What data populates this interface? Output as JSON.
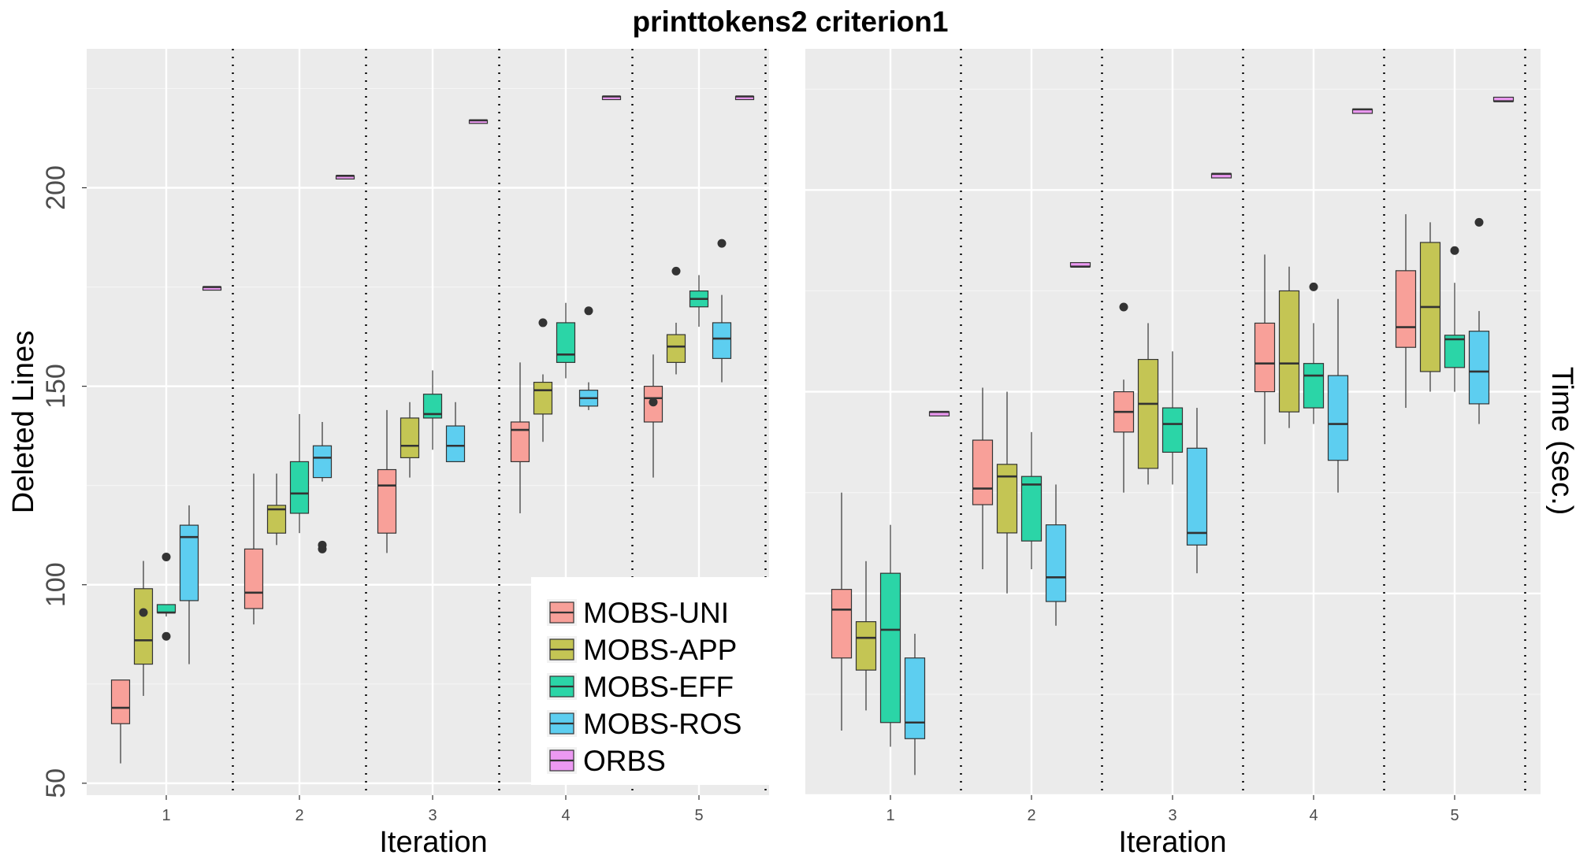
{
  "figure": {
    "title": "printtokens2 criterion1"
  },
  "chart_data": [
    {
      "type": "box",
      "title": "",
      "xlabel": "Iteration",
      "ylabel": "Deleted Lines",
      "categories": [
        "1",
        "2",
        "3",
        "4",
        "5"
      ],
      "ylim": [
        47,
        235
      ],
      "yticks": [
        50,
        100,
        150,
        200
      ],
      "grid": true,
      "legend_position": "bottom-right",
      "series": [
        {
          "name": "MOBS-UNI",
          "color": "#F8A099",
          "boxes": [
            {
              "min": 55,
              "q1": 65,
              "median": 69,
              "q3": 76,
              "max": 76,
              "outliers": []
            },
            {
              "min": 90,
              "q1": 94,
              "median": 98,
              "q3": 109,
              "max": 128,
              "outliers": []
            },
            {
              "min": 108,
              "q1": 113,
              "median": 125,
              "q3": 129,
              "max": 144,
              "outliers": []
            },
            {
              "min": 118,
              "q1": 131,
              "median": 139,
              "q3": 141,
              "max": 156,
              "outliers": []
            },
            {
              "min": 127,
              "q1": 141,
              "median": 147,
              "q3": 150,
              "max": 158,
              "outliers": [
                146
              ]
            }
          ]
        },
        {
          "name": "MOBS-APP",
          "color": "#C4C554",
          "boxes": [
            {
              "min": 72,
              "q1": 80,
              "median": 86,
              "q3": 99,
              "max": 106,
              "outliers": [
                93
              ]
            },
            {
              "min": 110,
              "q1": 113,
              "median": 119,
              "q3": 120,
              "max": 128,
              "outliers": []
            },
            {
              "min": 127,
              "q1": 132,
              "median": 135,
              "q3": 142,
              "max": 146,
              "outliers": []
            },
            {
              "min": 136,
              "q1": 143,
              "median": 149,
              "q3": 151,
              "max": 153,
              "outliers": [
                166
              ]
            },
            {
              "min": 153,
              "q1": 156,
              "median": 160,
              "q3": 163,
              "max": 166,
              "outliers": [
                179
              ]
            }
          ]
        },
        {
          "name": "MOBS-EFF",
          "color": "#2BD5A7",
          "boxes": [
            {
              "min": 92,
              "q1": 93,
              "median": 93,
              "q3": 95,
              "max": 95,
              "outliers": [
                87,
                107
              ]
            },
            {
              "min": 113,
              "q1": 118,
              "median": 123,
              "q3": 131,
              "max": 143,
              "outliers": []
            },
            {
              "min": 134,
              "q1": 142,
              "median": 143,
              "q3": 148,
              "max": 154,
              "outliers": []
            },
            {
              "min": 152,
              "q1": 156,
              "median": 158,
              "q3": 166,
              "max": 171,
              "outliers": []
            },
            {
              "min": 165,
              "q1": 170,
              "median": 172,
              "q3": 174,
              "max": 178,
              "outliers": []
            }
          ]
        },
        {
          "name": "MOBS-ROS",
          "color": "#5DCEF0",
          "boxes": [
            {
              "min": 80,
              "q1": 96,
              "median": 112,
              "q3": 115,
              "max": 120,
              "outliers": []
            },
            {
              "min": 126,
              "q1": 127,
              "median": 132,
              "q3": 135,
              "max": 141,
              "outliers": [
                109,
                110
              ]
            },
            {
              "min": 131,
              "q1": 131,
              "median": 135,
              "q3": 140,
              "max": 146,
              "outliers": []
            },
            {
              "min": 144,
              "q1": 145,
              "median": 147,
              "q3": 149,
              "max": 151,
              "outliers": [
                169
              ]
            },
            {
              "min": 151,
              "q1": 157,
              "median": 162,
              "q3": 166,
              "max": 173,
              "outliers": [
                186
              ]
            }
          ]
        },
        {
          "name": "ORBS",
          "color": "#EC99F2",
          "boxes": [
            {
              "min": 175,
              "q1": 175,
              "median": 175,
              "q3": 175,
              "max": 175,
              "outliers": []
            },
            {
              "min": 203,
              "q1": 203,
              "median": 203,
              "q3": 203,
              "max": 203,
              "outliers": []
            },
            {
              "min": 217,
              "q1": 217,
              "median": 217,
              "q3": 217,
              "max": 217,
              "outliers": []
            },
            {
              "min": 223,
              "q1": 223,
              "median": 223,
              "q3": 223,
              "max": 223,
              "outliers": []
            },
            {
              "min": 223,
              "q1": 223,
              "median": 223,
              "q3": 223,
              "max": 223,
              "outliers": []
            }
          ]
        }
      ]
    },
    {
      "type": "box",
      "title": "",
      "xlabel": "Iteration",
      "ylabel": "Time (sec.)",
      "categories": [
        "1",
        "2",
        "3",
        "4",
        "5"
      ],
      "ylim": [
        50,
        235
      ],
      "yticks": [],
      "grid": true,
      "series": [
        {
          "name": "MOBS-UNI",
          "color": "#F8A099",
          "boxes": [
            {
              "min": 66,
              "q1": 84,
              "median": 96,
              "q3": 101,
              "max": 125,
              "outliers": []
            },
            {
              "min": 106,
              "q1": 122,
              "median": 126,
              "q3": 138,
              "max": 151,
              "outliers": []
            },
            {
              "min": 125,
              "q1": 140,
              "median": 145,
              "q3": 150,
              "max": 153,
              "outliers": [
                171
              ]
            },
            {
              "min": 137,
              "q1": 150,
              "median": 157,
              "q3": 167,
              "max": 184,
              "outliers": []
            },
            {
              "min": 146,
              "q1": 161,
              "median": 166,
              "q3": 180,
              "max": 194,
              "outliers": []
            }
          ]
        },
        {
          "name": "MOBS-APP",
          "color": "#C4C554",
          "boxes": [
            {
              "min": 71,
              "q1": 81,
              "median": 89,
              "q3": 93,
              "max": 108,
              "outliers": []
            },
            {
              "min": 100,
              "q1": 115,
              "median": 129,
              "q3": 132,
              "max": 150,
              "outliers": []
            },
            {
              "min": 127,
              "q1": 131,
              "median": 147,
              "q3": 158,
              "max": 167,
              "outliers": []
            },
            {
              "min": 141,
              "q1": 145,
              "median": 157,
              "q3": 175,
              "max": 181,
              "outliers": []
            },
            {
              "min": 150,
              "q1": 155,
              "median": 171,
              "q3": 187,
              "max": 192,
              "outliers": []
            }
          ]
        },
        {
          "name": "MOBS-EFF",
          "color": "#2BD5A7",
          "boxes": [
            {
              "min": 62,
              "q1": 68,
              "median": 91,
              "q3": 105,
              "max": 117,
              "outliers": []
            },
            {
              "min": 106,
              "q1": 113,
              "median": 127,
              "q3": 129,
              "max": 140,
              "outliers": []
            },
            {
              "min": 127,
              "q1": 135,
              "median": 142,
              "q3": 146,
              "max": 160,
              "outliers": []
            },
            {
              "min": 142,
              "q1": 146,
              "median": 154,
              "q3": 157,
              "max": 167,
              "outliers": [
                176
              ]
            },
            {
              "min": 150,
              "q1": 156,
              "median": 163,
              "q3": 164,
              "max": 177,
              "outliers": [
                185
              ]
            }
          ]
        },
        {
          "name": "MOBS-ROS",
          "color": "#5DCEF0",
          "boxes": [
            {
              "min": 55,
              "q1": 64,
              "median": 68,
              "q3": 84,
              "max": 90,
              "outliers": []
            },
            {
              "min": 92,
              "q1": 98,
              "median": 104,
              "q3": 117,
              "max": 127,
              "outliers": []
            },
            {
              "min": 105,
              "q1": 112,
              "median": 115,
              "q3": 136,
              "max": 146,
              "outliers": []
            },
            {
              "min": 125,
              "q1": 133,
              "median": 142,
              "q3": 154,
              "max": 173,
              "outliers": []
            },
            {
              "min": 142,
              "q1": 147,
              "median": 155,
              "q3": 165,
              "max": 170,
              "outliers": [
                192
              ]
            }
          ]
        },
        {
          "name": "ORBS",
          "color": "#EC99F2",
          "boxes": [
            {
              "min": 144,
              "q1": 144,
              "median": 145,
              "q3": 145,
              "max": 145,
              "outliers": []
            },
            {
              "min": 181,
              "q1": 181,
              "median": 181,
              "q3": 182,
              "max": 182,
              "outliers": []
            },
            {
              "min": 203,
              "q1": 203,
              "median": 204,
              "q3": 204,
              "max": 204,
              "outliers": []
            },
            {
              "min": 219,
              "q1": 219,
              "median": 220,
              "q3": 220,
              "max": 220,
              "outliers": []
            },
            {
              "min": 222,
              "q1": 222,
              "median": 222,
              "q3": 223,
              "max": 223,
              "outliers": []
            }
          ]
        }
      ]
    }
  ]
}
